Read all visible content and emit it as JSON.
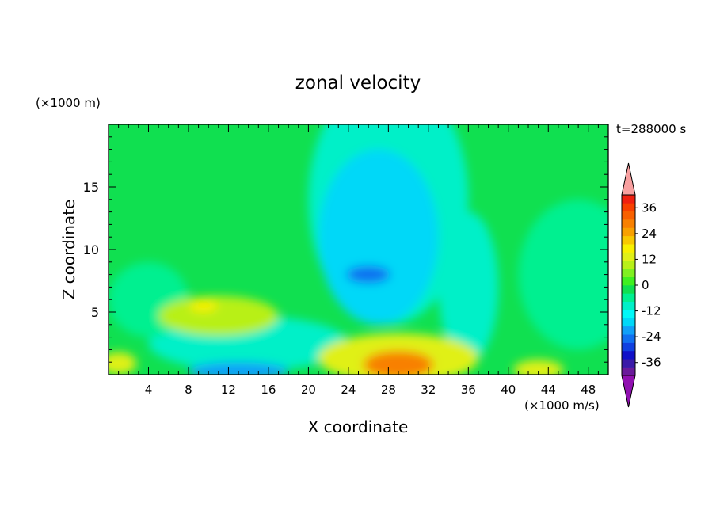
{
  "chart_data": {
    "type": "heatmap",
    "title": "zonal velocity",
    "xlabel": "X coordinate",
    "ylabel": "Z coordinate",
    "x_unit_label": "(×1000 m)",
    "colorbar_unit_label": "(×1000 m/s)",
    "time_label": "t=288000 s",
    "xlim": [
      0,
      50
    ],
    "ylim": [
      0,
      20
    ],
    "x_ticks": [
      4,
      8,
      12,
      16,
      20,
      24,
      28,
      32,
      36,
      40,
      44,
      48
    ],
    "y_ticks": [
      5,
      10,
      15
    ],
    "colorbar": {
      "levels": [
        -42,
        -39,
        -36,
        -33,
        -30,
        -27,
        -24,
        -21,
        -18,
        -15,
        -12,
        -9,
        -6,
        -3,
        0,
        3,
        6,
        9,
        12,
        15,
        18,
        21,
        24,
        27,
        30,
        33,
        36,
        39,
        42
      ],
      "labels": [
        36,
        24,
        12,
        0,
        -12,
        -24,
        -36
      ],
      "colors": [
        "#6a1a9a",
        "#3a1aa8",
        "#1010c8",
        "#1040e0",
        "#1070f0",
        "#10a0f8",
        "#00d8f8",
        "#00f8f8",
        "#00f0c8",
        "#00f090",
        "#10e050",
        "#40f020",
        "#80f020",
        "#b8f018",
        "#e0f018",
        "#f8f000",
        "#f8c800",
        "#f8a000",
        "#f88000",
        "#f86000",
        "#f84000",
        "#f02010"
      ],
      "extend_colors": {
        "low": "#9010b0",
        "high": "#f8a0a0"
      }
    },
    "features": [
      {
        "x": 26,
        "z": 8,
        "rx": 2.2,
        "rz": 0.7,
        "value": -22
      },
      {
        "x": 27,
        "z": 11,
        "rx": 6,
        "rz": 7,
        "value": -14
      },
      {
        "x": 28,
        "z": 14,
        "rx": 8,
        "rz": 10,
        "value": -9
      },
      {
        "x": 9.5,
        "z": 5.5,
        "rx": 1.4,
        "rz": 0.5,
        "value": 15
      },
      {
        "x": 11,
        "z": 4.7,
        "rx": 6,
        "rz": 1.6,
        "value": 8
      },
      {
        "x": 29,
        "z": 0.8,
        "rx": 3.5,
        "rz": 1.1,
        "value": 24
      },
      {
        "x": 29,
        "z": 1.3,
        "rx": 8,
        "rz": 2,
        "value": 12
      },
      {
        "x": 13,
        "z": 0.3,
        "rx": 5,
        "rz": 0.7,
        "value": -18
      },
      {
        "x": 14,
        "z": 2.5,
        "rx": 10,
        "rz": 2.2,
        "value": -8
      },
      {
        "x": 47,
        "z": 8,
        "rx": 6,
        "rz": 6,
        "value": -6
      },
      {
        "x": 4,
        "z": 6,
        "rx": 4,
        "rz": 3,
        "value": -6
      },
      {
        "x": 36,
        "z": 7,
        "rx": 3,
        "rz": 6,
        "value": -8
      },
      {
        "x": 43,
        "z": 0.4,
        "rx": 2.5,
        "rz": 0.8,
        "value": 12
      },
      {
        "x": 1,
        "z": 0.9,
        "rx": 1.8,
        "rz": 0.9,
        "value": 10
      }
    ]
  }
}
